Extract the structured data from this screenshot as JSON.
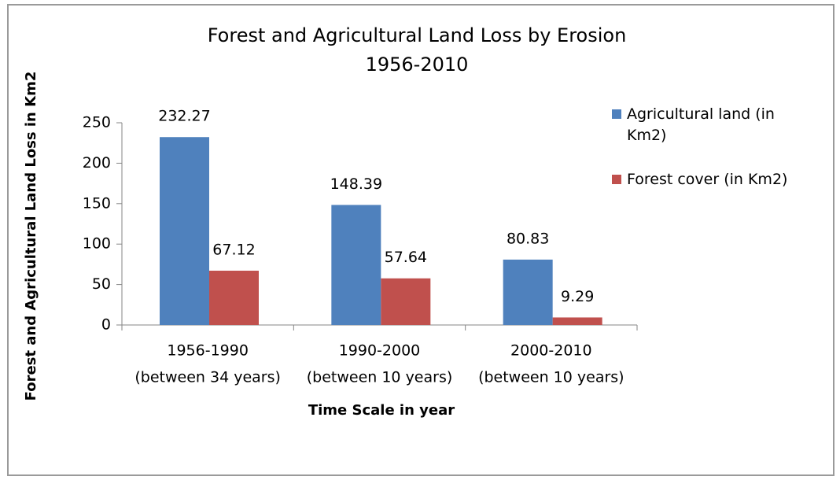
{
  "chart_data": {
    "type": "bar",
    "title": [
      "Forest and Agricultural Land Loss by Erosion",
      "1956-2010"
    ],
    "categories": [
      [
        "1956-1990",
        "(between 34 years)"
      ],
      [
        "1990-2000",
        "(between 10 years)"
      ],
      [
        "2000-2010",
        "(between 10 years)"
      ]
    ],
    "series": [
      {
        "name": "Agricultural land (in Km2)",
        "color": "#4f81bd",
        "values": [
          232.27,
          148.39,
          80.83
        ]
      },
      {
        "name": "Forest cover (in Km2)",
        "color": "#c0504d",
        "values": [
          67.12,
          57.64,
          9.29
        ]
      }
    ],
    "xlabel": "Time Scale in year",
    "ylabel": "Forest and Agricultural Land Loss in Km2",
    "ylim": [
      0,
      250
    ],
    "yticks": [
      0,
      50,
      100,
      150,
      200,
      250
    ],
    "grid": false,
    "legend": "right"
  }
}
